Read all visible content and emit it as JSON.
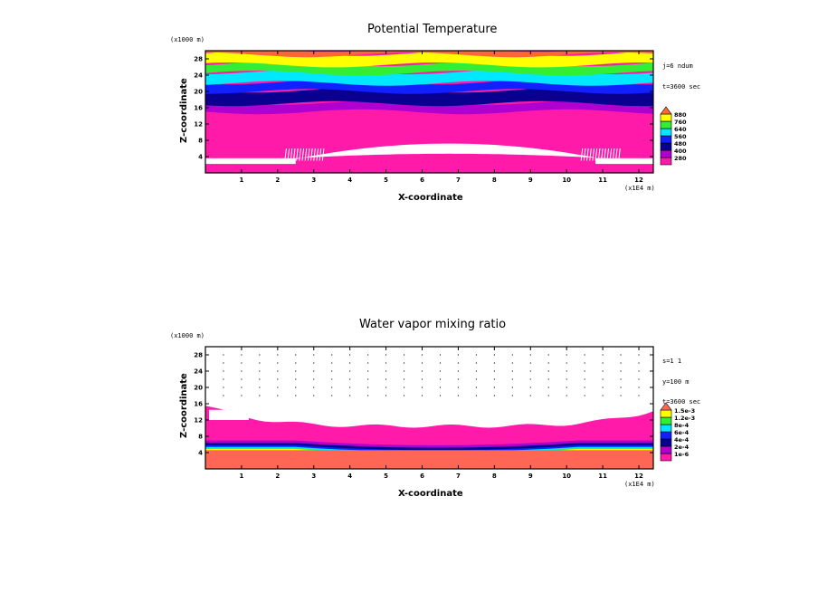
{
  "chart_data": [
    {
      "type": "heatmap",
      "title": "Potential Temperature",
      "xlabel": "X-coordinate",
      "ylabel": "Z-coordinate",
      "x_unit": "(x1E4 m)",
      "y_unit": "(x1000 m)",
      "x_ticks": [
        "1",
        "2",
        "3",
        "4",
        "5",
        "6",
        "7",
        "8",
        "9",
        "10",
        "11",
        "12"
      ],
      "y_ticks": [
        "4",
        "8",
        "12",
        "16",
        "20",
        "24",
        "28"
      ],
      "xlim": [
        0,
        12.4
      ],
      "ylim": [
        0,
        30
      ],
      "info": [
        "j=6 ndum",
        "t=3600 sec"
      ],
      "legend": [
        "280",
        "400",
        "480",
        "560",
        "640",
        "760",
        "880"
      ],
      "colors": [
        "#ff1aaa",
        "#b000d0",
        "#0a0090",
        "#1020ff",
        "#00e8ff",
        "#33ee33",
        "#ffff00",
        "#ff6633"
      ],
      "bands": [
        {
          "z0": 0,
          "z1": 3,
          "level": 0
        },
        {
          "z0": 3,
          "z1": 7,
          "level": 0
        },
        {
          "z0": 7,
          "z1": 15,
          "level": 0
        },
        {
          "z0": 15,
          "z1": 17,
          "level": 1
        },
        {
          "z0": 17,
          "z1": 20,
          "level": 2
        },
        {
          "z0": 20,
          "z1": 22,
          "level": 3
        },
        {
          "z0": 22,
          "z1": 24.5,
          "level": 4
        },
        {
          "z0": 24.5,
          "z1": 26.5,
          "level": 5
        },
        {
          "z0": 26.5,
          "z1": 29,
          "level": 6
        },
        {
          "z0": 29,
          "z1": 30,
          "level": 7
        }
      ]
    },
    {
      "type": "heatmap",
      "title": "Water vapor mixing ratio",
      "xlabel": "X-coordinate",
      "ylabel": "Z-coordinate",
      "x_unit": "(x1E4 m)",
      "y_unit": "(x1000 m)",
      "x_ticks": [
        "1",
        "2",
        "3",
        "4",
        "5",
        "6",
        "7",
        "8",
        "9",
        "10",
        "11",
        "12"
      ],
      "y_ticks": [
        "4",
        "8",
        "12",
        "16",
        "20",
        "24",
        "28"
      ],
      "xlim": [
        0,
        12.4
      ],
      "ylim": [
        0,
        30
      ],
      "info": [
        "s=1 1",
        "y=100 m",
        "t=3600 sec"
      ],
      "legend": [
        "1e-6",
        "2e-4",
        "4e-4",
        "6e-4",
        "8e-4",
        "1.2e-3",
        "1.5e-3"
      ],
      "colors": [
        "#ff1aaa",
        "#b000d0",
        "#0a0090",
        "#1020ff",
        "#00e8ff",
        "#33ee33",
        "#ffff00",
        "#ff6655"
      ]
    }
  ]
}
